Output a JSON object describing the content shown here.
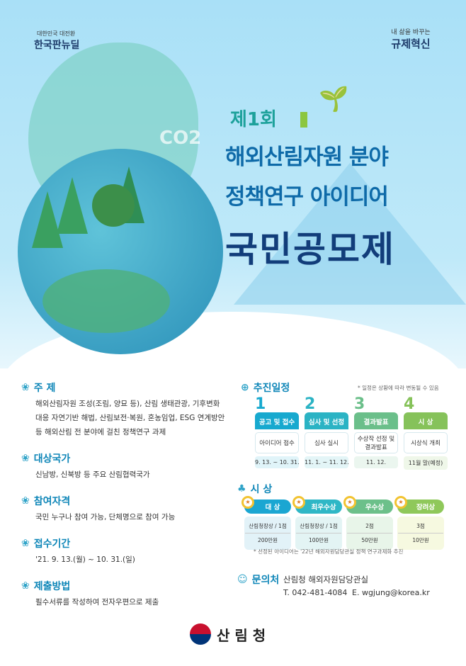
{
  "header": {
    "logo_left_small": "대한민국 대전환",
    "logo_left_big": "한국판뉴딜",
    "logo_right_small": "내 삶을 바꾸는",
    "logo_right_big": "규제혁신"
  },
  "hero": {
    "co2": "CO2",
    "edition": "제1회",
    "title_line1": "해외산림자원 분야",
    "title_line2": "정책연구 아이디어",
    "title_line3": "국민공모제"
  },
  "sections": [
    {
      "heading": "주 제",
      "icon": "sprout-icon",
      "body": [
        "해외산림자원 조성(조림, 양묘 등), 산림 생태관광, 기후변화",
        "대응 자연기반 해법, 산림보전·복원, 혼농임업, ESG 연계방안",
        "등 해외산림 전 분야에 걸친 정책연구 과제"
      ]
    },
    {
      "heading": "대상국가",
      "icon": "tree-icon",
      "body": [
        "신남방, 신북방 등 주요 산림협력국가"
      ]
    },
    {
      "heading": "참여자격",
      "icon": "people-icon",
      "body": [
        "국민 누구나 참여 가능, 단체명으로 참여 가능"
      ]
    },
    {
      "heading": "접수기간",
      "icon": "calendar-icon",
      "body": [
        "'21. 9. 13.(월) ~ 10. 31.(일)"
      ]
    },
    {
      "heading": "제출방법",
      "icon": "document-icon",
      "body": [
        "필수서류를 작성하여 전자우편으로 제출"
      ]
    }
  ],
  "schedule": {
    "heading": "추진일정",
    "note": "* 일정은 상황에 따라 변동될 수 있음",
    "steps": [
      {
        "num": "1",
        "title": "공고 및 접수",
        "desc": "아이디어 접수",
        "date": "9. 13. ~ 10. 31.",
        "color": "#17a9cf",
        "num_color": "#17a9cf"
      },
      {
        "num": "2",
        "title": "심사 및 선정",
        "desc": "심사 실시",
        "date": "11. 1. ~ 11. 12.",
        "color": "#2bb3c4",
        "num_color": "#2bb3c4"
      },
      {
        "num": "3",
        "title": "결과발표",
        "desc": "수상작 선정 및 결과발표",
        "date": "11. 12.",
        "color": "#6bbf8a",
        "num_color": "#6bbf8a"
      },
      {
        "num": "4",
        "title": "시 상",
        "desc": "시상식 개최",
        "date": "11월 말(예정)",
        "color": "#86c25a",
        "num_color": "#86c25a"
      }
    ]
  },
  "awards": {
    "heading": "시 상",
    "items": [
      {
        "title": "대 상",
        "line1": "산림청장상 / 1점",
        "line2": "200만원",
        "color": "#1aa6d2",
        "bg": "#e2f2f8"
      },
      {
        "title": "최우수상",
        "line1": "산림청장상 / 1점",
        "line2": "100만원",
        "color": "#2fb7c6",
        "bg": "#e3f4f4"
      },
      {
        "title": "우수상",
        "line1": "2점",
        "line2": "50만원",
        "color": "#6cc08a",
        "bg": "#e8f5e9"
      },
      {
        "title": "장려상",
        "line1": "3점",
        "line2": "10만원",
        "color": "#8fc85a",
        "bg": "#f6f9e0"
      }
    ],
    "note": "* 선정된 아이디어는 '22년 해외자원담당관실 정책 연구과제화 추진"
  },
  "contact": {
    "heading": "문의처",
    "org": "산림청 해외자원담당관실",
    "phone": "T. 042-481-4084",
    "email": "E. wgjung@korea.kr"
  },
  "footer": {
    "logo": "산 림 청"
  }
}
